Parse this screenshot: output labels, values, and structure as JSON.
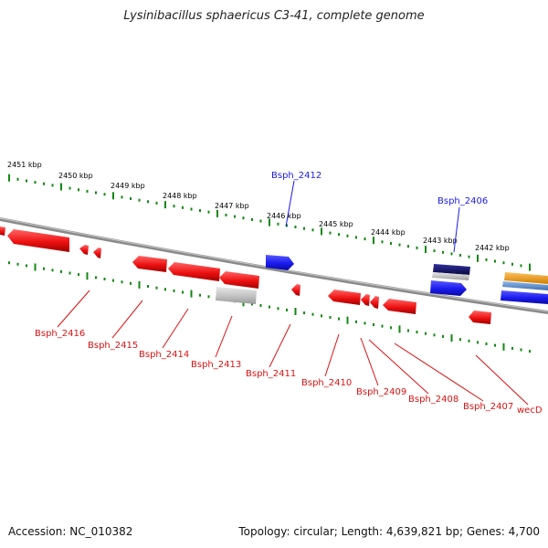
{
  "title": "Lysinibacillus sphaericus C3-41, complete genome",
  "footer": {
    "accession": "Accession: NC_010382",
    "summary": "Topology: circular; Length: 4,639,821 bp; Genes: 4,700"
  },
  "colors": {
    "reverse_strand": "#ee1111",
    "forward_strand": "#1a1aee",
    "label_forward": "#1a1aee",
    "label_reverse": "#dd1111",
    "backbone": "#888888",
    "ticks": "#118811",
    "rna_gray": "#c0c0c0",
    "dark_navy": "#101060",
    "orange": "#f0a020",
    "steel_blue": "#5080c0"
  },
  "scale_labels": [
    "2451 kbp",
    "2450 kbp",
    "2449 kbp",
    "2448 kbp",
    "2447 kbp",
    "2446 kbp",
    "2445 kbp",
    "2444 kbp",
    "2443 kbp",
    "2442 kbp"
  ],
  "gene_labels": {
    "forward": [
      "Bsph_2412",
      "Bsph_2406"
    ],
    "reverse": [
      "Bsph_2416",
      "Bsph_2415",
      "Bsph_2414",
      "Bsph_2413",
      "Bsph_2411",
      "Bsph_2410",
      "Bsph_2409",
      "Bsph_2408",
      "Bsph_2407",
      "wecD"
    ]
  }
}
